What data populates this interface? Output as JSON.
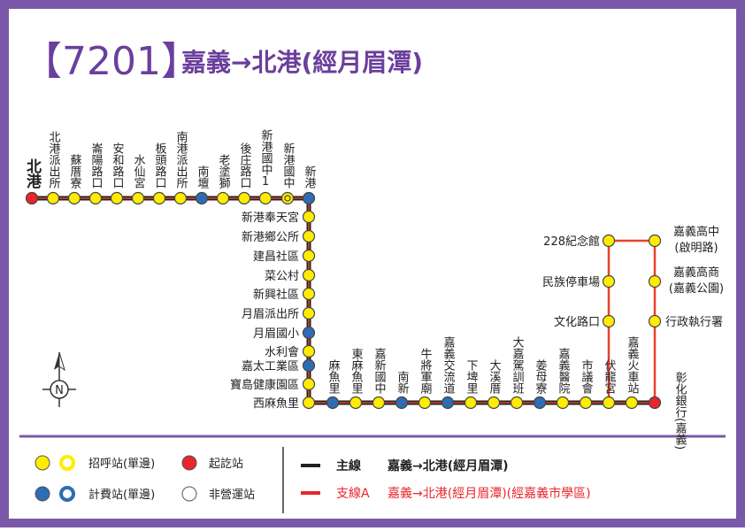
{
  "header": {
    "route": "【7201】",
    "title": "嘉義→北港(經月眉潭)"
  },
  "top_stops": [
    "北港",
    "北港派出所",
    "蘇厝寮",
    "崙陽路口",
    "安和路口",
    "水仙宮",
    "板頭路口",
    "南港派出所",
    "南壇",
    "老塗獅",
    "後庄路口",
    "新港國中1",
    "新港國中",
    "新港"
  ],
  "east_stops": [
    "新港奉天宮",
    "新港鄉公所",
    "建昌社區",
    "菜公村",
    "新興社區",
    "月眉派出所",
    "月眉國小",
    "水利會",
    "嘉太工業區",
    "寶島健康園區",
    "西麻魚里"
  ],
  "bottom_stops": [
    "麻魚里",
    "東麻魚里",
    "嘉新國中",
    "南新",
    "牛將軍廟",
    "嘉義交流道",
    "下埤里",
    "大溪厝",
    "大嘉駕訓班",
    "姜母寮",
    "嘉義醫院",
    "市議會",
    "伏龍宮",
    "嘉義火車站",
    "彰化銀行(嘉義)"
  ],
  "branch_left": [
    "228紀念館",
    "民族停車場",
    "文化路口"
  ],
  "branch_right": [
    "嘉義高中(啟明路)",
    "嘉義高商(嘉義公園)",
    "行政執行署"
  ],
  "compass": "N",
  "legend": {
    "request_stop": "招呼站(單邊)",
    "terminal": "起訖站",
    "fare_stop": "計費站(單邊)",
    "non_service": "非營運站"
  },
  "lines": {
    "main": {
      "name": "主線",
      "route": "嘉義→北港(經月眉潭)"
    },
    "branch": {
      "name": "支線A",
      "route": "嘉義→北港(經月眉潭)(經嘉義市學區)"
    }
  }
}
